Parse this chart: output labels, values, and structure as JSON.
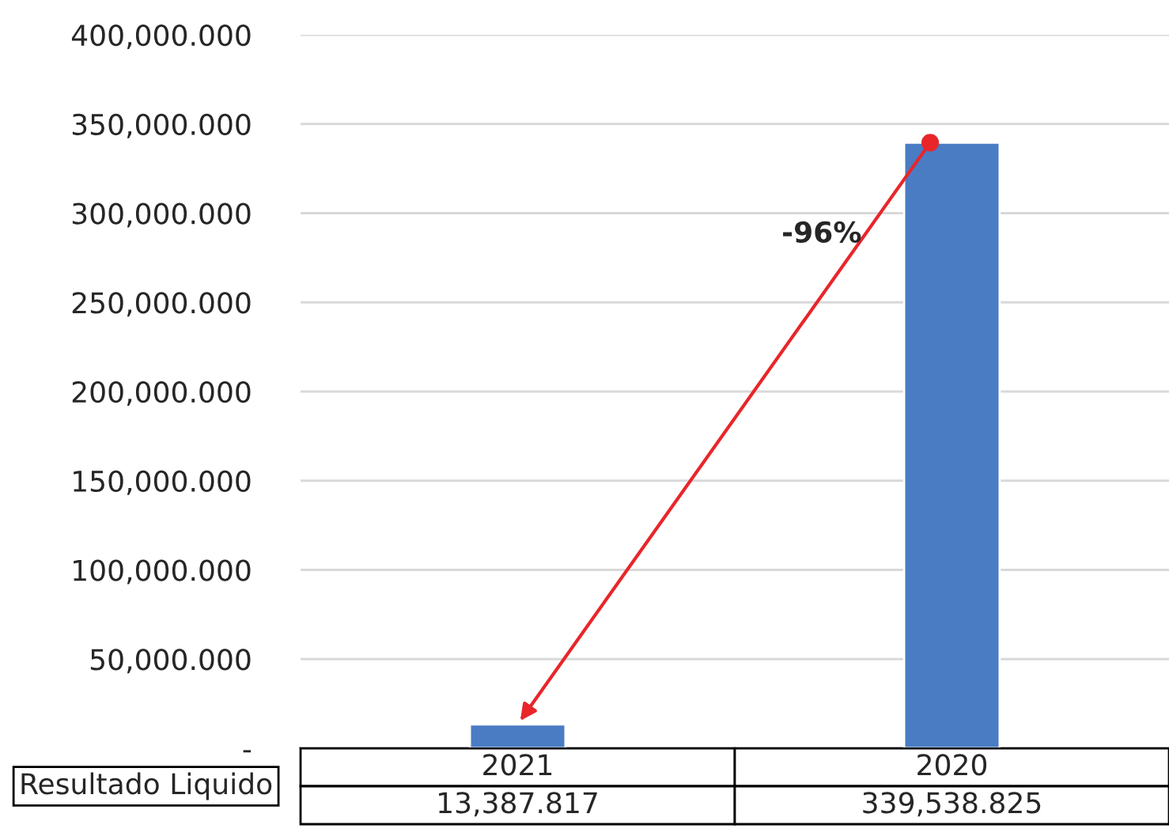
{
  "chart_data": {
    "type": "bar",
    "categories": [
      "2021",
      "2020"
    ],
    "series": [
      {
        "name": "Resultado Liquido",
        "color": "#4a7cc4",
        "values": [
          13387.817,
          339538.825
        ],
        "value_labels": [
          "13,387.817",
          "339,538.825"
        ]
      }
    ],
    "ylim": [
      0,
      400000
    ],
    "yticks": [
      {
        "value": 0,
        "label": "-"
      },
      {
        "value": 50000,
        "label": "50,000.000"
      },
      {
        "value": 100000,
        "label": "100,000.000"
      },
      {
        "value": 150000,
        "label": "150,000.000"
      },
      {
        "value": 200000,
        "label": "200,000.000"
      },
      {
        "value": 250000,
        "label": "250,000.000"
      },
      {
        "value": 300000,
        "label": "300,000.000"
      },
      {
        "value": 350000,
        "label": "350,000.000"
      },
      {
        "value": 400000,
        "label": "400,000.000"
      }
    ],
    "grid": "y",
    "legend": false,
    "annotations": [
      "-96%"
    ]
  }
}
